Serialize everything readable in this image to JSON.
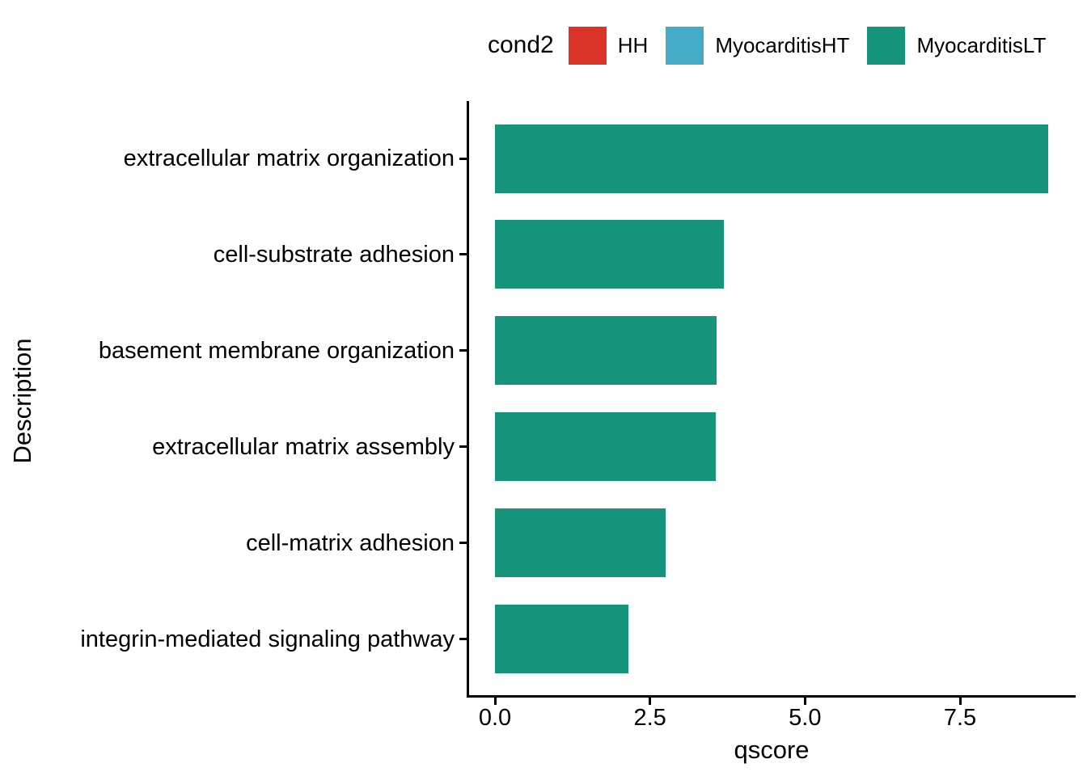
{
  "chart_data": {
    "type": "bar",
    "orientation": "horizontal",
    "xlabel": "qscore",
    "ylabel": "Description",
    "categories": [
      "extracellular matrix organization",
      "cell-substrate adhesion",
      "basement membrane organization",
      "extracellular matrix assembly",
      "cell-matrix adhesion",
      "integrin-mediated signaling pathway"
    ],
    "values": [
      8.92,
      3.69,
      3.57,
      3.56,
      2.75,
      2.15
    ],
    "series_fill": "MyocarditisLT",
    "bar_color": "#16937B",
    "x_ticks": [
      0.0,
      2.5,
      5.0,
      7.5
    ],
    "x_tick_labels": [
      "0.0",
      "2.5",
      "5.0",
      "7.5"
    ],
    "xlim": [
      -0.4,
      9.37
    ],
    "grid": false,
    "background": "#ffffff",
    "axis_color": "#000000",
    "legend": {
      "title": "cond2",
      "position": "top",
      "entries": [
        {
          "label": "HH",
          "color": "#D93427"
        },
        {
          "label": "MyocarditisHT",
          "color": "#44ABC7"
        },
        {
          "label": "MyocarditisLT",
          "color": "#16937B"
        }
      ]
    }
  }
}
